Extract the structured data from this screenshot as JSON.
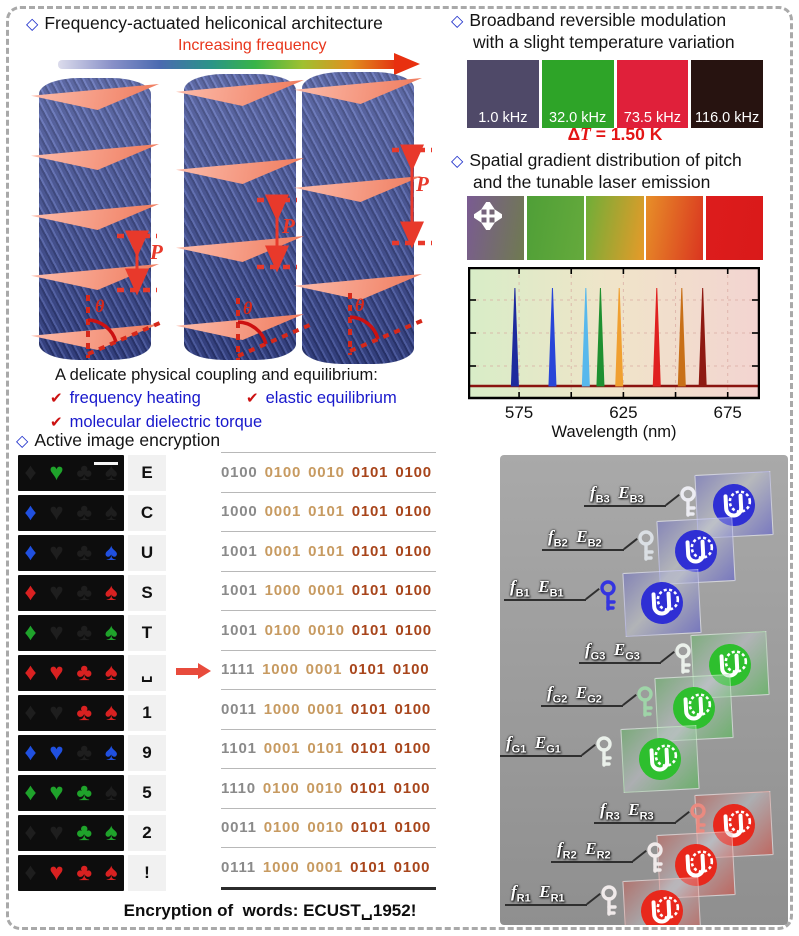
{
  "left": {
    "title": "Frequency-actuated heliconical architecture",
    "freq_arrow_label": "Increasing frequency",
    "pitch_label": "P",
    "theta_label": "θ",
    "coupling_heading": "A delicate physical coupling and equilibrium:",
    "coupling_items": [
      "frequency heating",
      "elastic equilibrium",
      "molecular dielectric torque"
    ],
    "encryption_title": "Active image encryption",
    "caption": "Encryption of  words: ECUST␣1952!"
  },
  "right": {
    "broadband_title1": "Broadband reversible modulation",
    "broadband_title2": "with a slight temperature variation",
    "swatches": [
      {
        "label": "1.0 kHz",
        "color": "#4f4968"
      },
      {
        "label": "32.0 kHz",
        "color": "#2ea428"
      },
      {
        "label": "73.5 kHz",
        "color": "#e0203a"
      },
      {
        "label": "116.0 kHz",
        "color": "#271310"
      }
    ],
    "delta_symbol": "Δ",
    "delta_T": "T",
    "delta_rest": " = 1.50 K",
    "spatial_title1": "Spatial gradient distribution of pitch",
    "spatial_title2": "and the tunable laser emission",
    "pitch_cells": [
      [
        "#7a5b92",
        "#6f7a50"
      ],
      [
        "#4f9f37",
        "#65aa3c"
      ],
      [
        "#6fae38",
        "#e79a29"
      ],
      [
        "#e78f28",
        "#da3520"
      ],
      [
        "#dd1c1c",
        "#d91a1a"
      ]
    ]
  },
  "icons": {
    "bullet_diamond": "◇",
    "check": "✔",
    "suit_glyphs": {
      "diamond": "♦",
      "heart": "♥",
      "club": "♣",
      "spade": "♠"
    }
  },
  "suit_colors": {
    "red": "#d92121",
    "green": "#1fa32b",
    "blue": "#2050e0",
    "off": "#1e1e1e"
  },
  "bit_colors": [
    "#8a8a8a",
    "#c79a60",
    "#c79a60",
    "#a8451b",
    "#a8451b"
  ],
  "encryption_rows": [
    {
      "char": "E",
      "bits": [
        "0100",
        "0100",
        "0010",
        "0101",
        "0100"
      ],
      "suits": [
        "off",
        "green",
        "off",
        "off"
      ],
      "scalebar": true
    },
    {
      "char": "C",
      "bits": [
        "1000",
        "0001",
        "0101",
        "0101",
        "0100"
      ],
      "suits": [
        "blue",
        "off",
        "off",
        "off"
      ],
      "scalebar": false
    },
    {
      "char": "U",
      "bits": [
        "1001",
        "0001",
        "0101",
        "0101",
        "0100"
      ],
      "suits": [
        "blue",
        "off",
        "off",
        "blue"
      ],
      "scalebar": false
    },
    {
      "char": "S",
      "bits": [
        "1001",
        "1000",
        "0001",
        "0101",
        "0100"
      ],
      "suits": [
        "red",
        "off",
        "off",
        "red"
      ],
      "scalebar": false
    },
    {
      "char": "T",
      "bits": [
        "1001",
        "0100",
        "0010",
        "0101",
        "0100"
      ],
      "suits": [
        "green",
        "off",
        "off",
        "green"
      ],
      "scalebar": false
    },
    {
      "char": "␣",
      "bits": [
        "1111",
        "1000",
        "0001",
        "0101",
        "0100"
      ],
      "suits": [
        "red",
        "red",
        "red",
        "red"
      ],
      "scalebar": false
    },
    {
      "char": "1",
      "bits": [
        "0011",
        "1000",
        "0001",
        "0101",
        "0100"
      ],
      "suits": [
        "off",
        "off",
        "red",
        "red"
      ],
      "scalebar": false
    },
    {
      "char": "9",
      "bits": [
        "1101",
        "0001",
        "0101",
        "0101",
        "0100"
      ],
      "suits": [
        "blue",
        "blue",
        "off",
        "blue"
      ],
      "scalebar": false
    },
    {
      "char": "5",
      "bits": [
        "1110",
        "0100",
        "0010",
        "0101",
        "0100"
      ],
      "suits": [
        "green",
        "green",
        "green",
        "off"
      ],
      "scalebar": false
    },
    {
      "char": "2",
      "bits": [
        "0011",
        "0100",
        "0010",
        "0101",
        "0100"
      ],
      "suits": [
        "off",
        "off",
        "green",
        "green"
      ],
      "scalebar": false
    },
    {
      "char": "!",
      "bits": [
        "0111",
        "1000",
        "0001",
        "0101",
        "0100"
      ],
      "suits": [
        "off",
        "red",
        "red",
        "red"
      ],
      "scalebar": false
    }
  ],
  "keys": {
    "f_label": "f",
    "e_label": "E",
    "groups": [
      {
        "name": "blue",
        "hex": "#2f2fd4",
        "tint": "#4a4ade",
        "items": [
          {
            "sub": "B3",
            "key_color": "#ececf2"
          },
          {
            "sub": "B2",
            "key_color": "#dadfe4"
          },
          {
            "sub": "B1",
            "key_color": "#3535e0"
          }
        ]
      },
      {
        "name": "green",
        "hex": "#2ebf2e",
        "tint": "#3fca3f",
        "items": [
          {
            "sub": "G3",
            "key_color": "#eaf0ea"
          },
          {
            "sub": "G2",
            "key_color": "#9fd4a8"
          },
          {
            "sub": "G1",
            "key_color": "#eaf0ea"
          }
        ]
      },
      {
        "name": "red",
        "hex": "#e8281c",
        "tint": "#ee3a2c",
        "items": [
          {
            "sub": "R3",
            "key_color": "#ea8a80"
          },
          {
            "sub": "R2",
            "key_color": "#f0eaea"
          },
          {
            "sub": "R1",
            "key_color": "#f0eaea"
          }
        ]
      }
    ]
  },
  "chart_data": {
    "type": "line",
    "title": "",
    "xlabel": "Wavelength (nm)",
    "ylabel": "",
    "xlim": [
      551,
      690
    ],
    "x_ticks_labeled": [
      575,
      625,
      675
    ],
    "x_ticks_unlabeled": [
      600,
      650
    ],
    "grid": true,
    "legend": false,
    "background_gradient": [
      "#d8edc7",
      "#f0e4c9",
      "#f3d4d1"
    ],
    "baseline_color": "#8a1410",
    "peaks": [
      {
        "wavelength": 573,
        "color": "#1e2a9e"
      },
      {
        "wavelength": 591,
        "color": "#2846d8"
      },
      {
        "wavelength": 607,
        "color": "#58b8ec"
      },
      {
        "wavelength": 614,
        "color": "#1f9030"
      },
      {
        "wavelength": 623,
        "color": "#f0a030"
      },
      {
        "wavelength": 641,
        "color": "#e02020"
      },
      {
        "wavelength": 653,
        "color": "#c87018"
      },
      {
        "wavelength": 663,
        "color": "#8e1a12"
      }
    ]
  }
}
